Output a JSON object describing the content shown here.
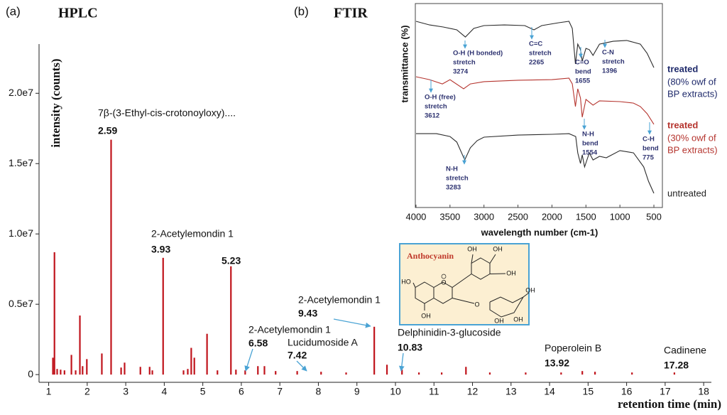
{
  "panel_labels": [
    "(a)",
    "(b)"
  ],
  "chart_data": [
    {
      "type": "bar",
      "title": "HPLC",
      "x_label": "retention time (min)",
      "y_label": "intensity (counts)",
      "color": "#c0141c",
      "x": [
        1.11,
        1.15,
        1.22,
        1.31,
        1.41,
        1.59,
        1.7,
        1.81,
        1.88,
        1.99,
        2.38,
        2.62,
        2.88,
        2.97,
        3.38,
        3.62,
        3.69,
        3.97,
        4.5,
        4.61,
        4.7,
        4.78,
        5.11,
        5.38,
        5.73,
        5.86,
        6.1,
        6.43,
        6.6,
        6.89,
        7.45,
        8.07,
        8.72,
        9.45,
        9.78,
        10.17,
        10.61,
        11.2,
        11.83,
        12.45,
        13.38,
        14.3,
        14.85,
        15.18,
        16.14,
        17.24
      ],
      "values": [
        1200000,
        8700000,
        400000,
        350000,
        300000,
        1400000,
        300000,
        4200000,
        600000,
        1100000,
        1500000,
        16700000,
        500000,
        850000,
        550000,
        550000,
        300000,
        8300000,
        300000,
        400000,
        1900000,
        1200000,
        2900000,
        300000,
        7700000,
        350000,
        300000,
        600000,
        600000,
        250000,
        250000,
        200000,
        150000,
        3400000,
        700000,
        350000,
        150000,
        150000,
        550000,
        150000,
        150000,
        150000,
        250000,
        200000,
        150000,
        150000
      ],
      "xlim": [
        0.75,
        18.2
      ],
      "xticks": [
        1,
        2,
        3,
        4,
        5,
        6,
        7,
        8,
        9,
        10,
        11,
        12,
        13,
        14,
        15,
        16,
        17,
        18
      ],
      "ylim": [
        -550000,
        23500000
      ],
      "yticks": [
        0,
        {
          "value": 5000000,
          "label": "0.5e7"
        },
        {
          "value": 10000000,
          "label": "1.0e7"
        },
        {
          "value": 15000000,
          "label": "1.5e7"
        },
        {
          "value": 20000000,
          "label": "2.0e7"
        }
      ],
      "annotations": [
        {
          "label": "7β-(3-Ethyl-cis-crotonoyloxy)....",
          "rt": 2.59
        },
        {
          "label": "2-Acetylemondin 1",
          "rt": 3.93
        },
        {
          "rt": 5.23
        },
        {
          "label": "2-Acetylemondin 1",
          "rt": 9.43
        },
        {
          "label": "2-Acetylemondin 1",
          "rt": 6.58
        },
        {
          "label": "Lucidumoside A",
          "rt": 7.42
        },
        {
          "label": "Delphinidin-3-glucoside",
          "rt": 10.83
        },
        {
          "label": "Poperolein B",
          "rt": 13.92
        },
        {
          "label": "Cadinene",
          "rt": 17.28
        }
      ]
    },
    {
      "type": "line",
      "title": "FTIR",
      "x_label": "wavelength number (cm-1)",
      "y_label": "transmittance (%)",
      "xlim": [
        4010,
        375
      ],
      "xticks": [
        4000,
        3500,
        3000,
        2500,
        2000,
        1500,
        1000,
        500
      ],
      "ylim": [
        0,
        100
      ],
      "series": [
        {
          "name": "treated",
          "detail": [
            "(80% owf of",
            "BP extracts)"
          ],
          "color": "#2b2b2b",
          "legend_color": "#1f2a6b",
          "x": [
            4000,
            3800,
            3600,
            3400,
            3274,
            3150,
            3000,
            2700,
            2400,
            2265,
            2150,
            1900,
            1750,
            1700,
            1655,
            1620,
            1580,
            1554,
            1500,
            1450,
            1396,
            1300,
            1200,
            1100,
            900,
            700,
            600,
            500
          ],
          "values": [
            91.3,
            89.5,
            88.5,
            87.1,
            83.6,
            87.8,
            89.2,
            89.5,
            89.2,
            87.1,
            89.2,
            90.6,
            91.3,
            87.8,
            70.4,
            80.1,
            77.4,
            71.8,
            78.0,
            77.4,
            74.6,
            80.1,
            80.8,
            81.5,
            81.9,
            80.1,
            75.6,
            68.6
          ]
        },
        {
          "name": "treated",
          "detail": [
            "(30% owf of",
            "BP extracts)"
          ],
          "color": "#b5342e",
          "legend_color": "#b5342e",
          "x": [
            4000,
            3800,
            3612,
            3500,
            3300,
            3200,
            3000,
            2500,
            2000,
            1750,
            1700,
            1655,
            1620,
            1580,
            1554,
            1500,
            1396,
            1300,
            1000,
            800,
            700,
            600,
            500
          ],
          "values": [
            64.1,
            62.7,
            60.6,
            62.7,
            58.2,
            60.6,
            61.7,
            62.4,
            62.7,
            63.4,
            60.6,
            49.5,
            58.2,
            53.7,
            44.3,
            53.0,
            50.2,
            52.3,
            51.9,
            51.2,
            49.5,
            46.0,
            40.8
          ]
        },
        {
          "name": "untreated",
          "color": "#2b2b2b",
          "legend_color": "#222222",
          "x": [
            4000,
            3700,
            3500,
            3400,
            3283,
            3200,
            3100,
            3000,
            2500,
            2000,
            1750,
            1650,
            1620,
            1580,
            1554,
            1520,
            1450,
            1396,
            1300,
            1200,
            1000,
            800,
            650,
            580,
            500
          ],
          "values": [
            36.2,
            36.2,
            34.8,
            32.1,
            23.3,
            29.3,
            32.8,
            34.5,
            35.5,
            35.9,
            36.2,
            34.8,
            26.8,
            21.6,
            25.8,
            19.9,
            26.8,
            23.3,
            25.1,
            24.4,
            27.9,
            26.8,
            19.9,
            12.9,
            6.97
          ]
        }
      ],
      "annotations": [
        {
          "lines": [
            "O-H (H bonded)",
            "stretch"
          ],
          "wavenumber": 3274
        },
        {
          "lines": [
            "C=C",
            "stretch"
          ],
          "wavenumber": 2265
        },
        {
          "lines": [
            "C=O",
            "bend"
          ],
          "wavenumber": 1655
        },
        {
          "lines": [
            "C-N",
            "stretch"
          ],
          "wavenumber": 1396
        },
        {
          "lines": [
            "O-H (free)",
            "stretch"
          ],
          "wavenumber": 3612
        },
        {
          "lines": [
            "N-H",
            "bend"
          ],
          "wavenumber": 1554
        },
        {
          "lines": [
            "C-H",
            "bend"
          ],
          "wavenumber": 775
        },
        {
          "lines": [
            "N-H",
            "stretch"
          ],
          "wavenumber": 3283
        }
      ]
    }
  ],
  "inset": {
    "title": "Anthocyanin",
    "atoms": [
      "OH",
      "OH",
      "OH",
      "O",
      "HO",
      "OH",
      "O",
      "OH",
      "OH",
      "OH"
    ]
  }
}
